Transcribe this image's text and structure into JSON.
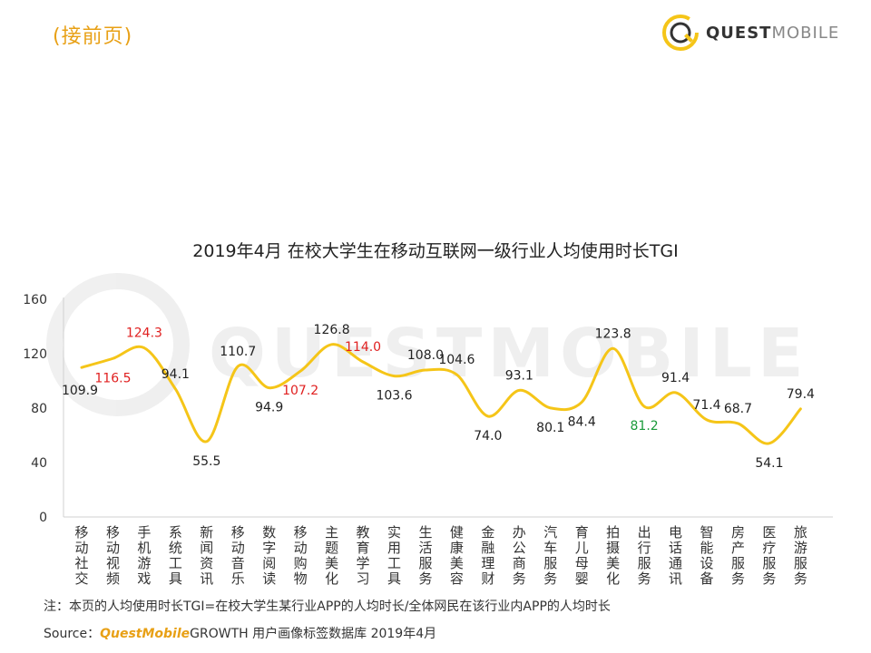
{
  "header": {
    "continue_label": "(接前页)",
    "logo_bold": "QUEST",
    "logo_light": "MOBILE"
  },
  "watermark": "QUESTMOBILE",
  "colors": {
    "line": "#f5c518",
    "label_default": "#222222",
    "label_red": "#e02020",
    "label_green": "#1a9a3a",
    "accent": "#e8a015"
  },
  "chart_data": {
    "type": "line",
    "title": "2019年4月 在校大学生在移动互联网一级行业人均使用时长TGI",
    "xlabel": "",
    "ylabel": "",
    "ylim": [
      0,
      160
    ],
    "yticks": [
      0,
      40,
      80,
      120,
      160
    ],
    "grid": false,
    "categories": [
      "移动社交",
      "移动视频",
      "手机游戏",
      "系统工具",
      "新闻资讯",
      "移动音乐",
      "数字阅读",
      "移动购物",
      "主题美化",
      "教育学习",
      "实用工具",
      "生活服务",
      "健康美容",
      "金融理财",
      "办公商务",
      "汽车服务",
      "育儿母婴",
      "拍摄美化",
      "出行服务",
      "电话通讯",
      "智能设备",
      "房产服务",
      "医疗服务",
      "旅游服务"
    ],
    "series": [
      {
        "values": [
          109.9,
          116.5,
          124.3,
          94.1,
          55.5,
          110.7,
          94.9,
          107.2,
          126.8,
          114.0,
          103.6,
          108.0,
          104.6,
          74.0,
          93.1,
          80.1,
          84.4,
          123.8,
          81.2,
          91.4,
          71.4,
          68.7,
          54.1,
          79.4
        ],
        "labels": [
          "109.9",
          "116.5",
          "124.3",
          "94.1",
          "55.5",
          "110.7",
          "94.9",
          "107.2",
          "126.8",
          "114.0",
          "103.6",
          "108.0",
          "104.6",
          "74.0",
          "93.1",
          "80.1",
          "84.4",
          "123.8",
          "81.2",
          "91.4",
          "71.4",
          "68.7",
          "54.1",
          "79.4"
        ],
        "label_colors": [
          "default",
          "red",
          "red",
          "default",
          "default",
          "default",
          "default",
          "red",
          "default",
          "red",
          "default",
          "default",
          "default",
          "default",
          "default",
          "default",
          "default",
          "default",
          "green",
          "default",
          "default",
          "default",
          "default",
          "default"
        ]
      }
    ]
  },
  "footer": {
    "note": "注：本页的人均使用时长TGI=在校大学生某行业APP的人均时长/全体网民在该行业内APP的人均时长",
    "source_prefix": "Source：",
    "source_brand": "QuestMobile",
    "source_rest": "GROWTH 用户画像标签数据库 2019年4月"
  }
}
